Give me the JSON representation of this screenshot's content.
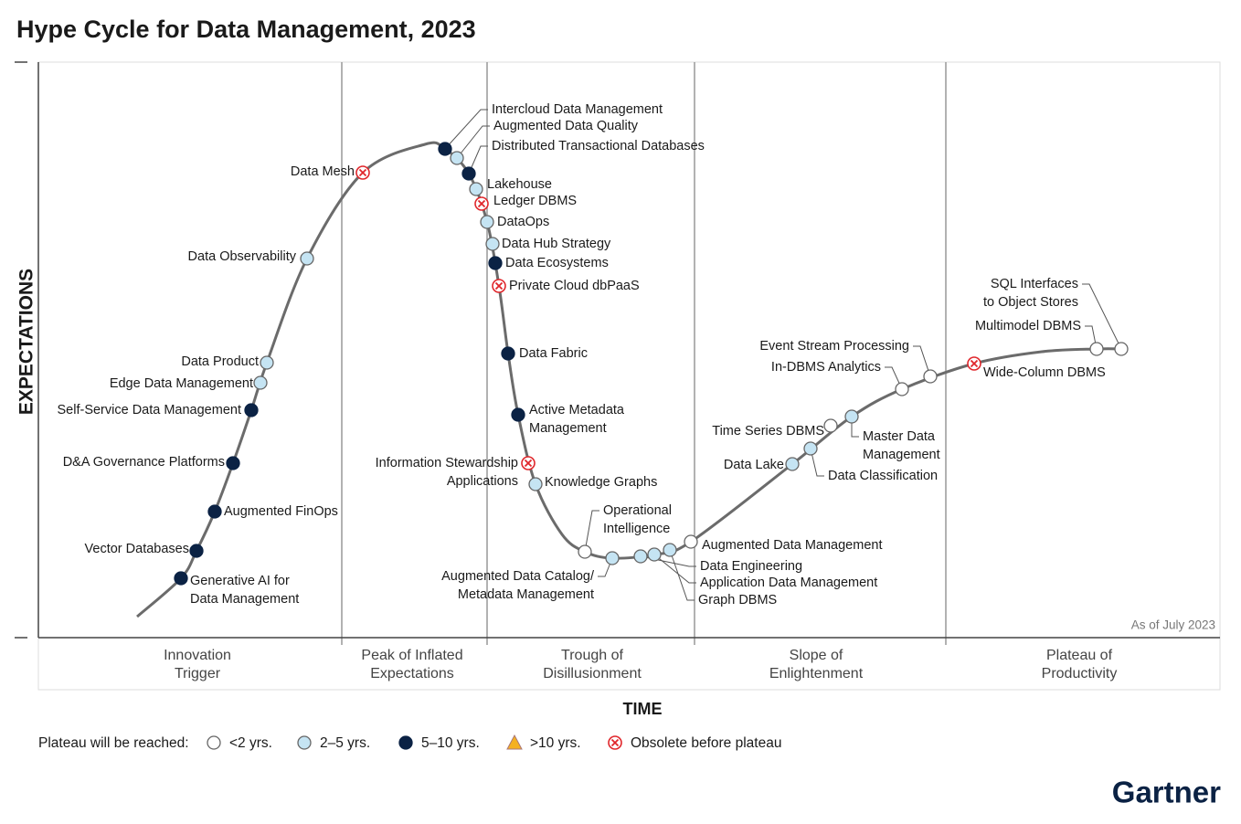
{
  "title": "Hype Cycle for Data Management, 2023",
  "y_axis_label": "EXPECTATIONS",
  "x_axis_label": "TIME",
  "as_of": "As of July 2023",
  "brand": "Gartner",
  "phases": [
    [
      "Innovation",
      "Trigger"
    ],
    [
      "Peak of Inflated",
      "Expectations"
    ],
    [
      "Trough of",
      "Disillusionment"
    ],
    [
      "Slope of",
      "Enlightenment"
    ],
    [
      "Plateau of",
      "Productivity"
    ]
  ],
  "legend": {
    "title": "Plateau will be reached:",
    "items": [
      {
        "label": "<2 yrs.",
        "color": "#ffffff",
        "marker": "circle",
        "technologies": [
          {
            "label": [
              "Operational",
              "Intelligence"
            ]
          },
          {
            "label": [
              "Augmented Data Management"
            ]
          },
          {
            "label": [
              "Time Series DBMS"
            ]
          },
          {
            "label": [
              "In-DBMS Analytics"
            ]
          },
          {
            "label": [
              "Event Stream Processing"
            ]
          },
          {
            "label": [
              "Multimodel DBMS"
            ]
          },
          {
            "label": [
              "SQL Interfaces",
              "to Object Stores"
            ]
          }
        ]
      },
      {
        "label": "2–5 yrs.",
        "color": "#c5e4f3",
        "marker": "circle",
        "technologies": [
          {
            "label": [
              "Data Product"
            ]
          },
          {
            "label": [
              "Edge Data Management"
            ]
          },
          {
            "label": [
              "Data Observability"
            ]
          },
          {
            "label": [
              "Augmented Data Quality"
            ]
          },
          {
            "label": [
              "Lakehouse"
            ]
          },
          {
            "label": [
              "DataOps"
            ]
          },
          {
            "label": [
              "Data Hub Strategy"
            ]
          },
          {
            "label": [
              "Knowledge Graphs"
            ]
          },
          {
            "label": [
              "Augmented Data Catalog/",
              "Metadata Management"
            ]
          },
          {
            "label": [
              "Data Engineering"
            ]
          },
          {
            "label": [
              "Application Data Management"
            ]
          },
          {
            "label": [
              "Graph DBMS"
            ]
          },
          {
            "label": [
              "Data Lake"
            ]
          },
          {
            "label": [
              "Data Classification"
            ]
          },
          {
            "label": [
              "Master Data",
              "Management"
            ]
          }
        ]
      },
      {
        "label": "5–10 yrs.",
        "color": "#0b2244",
        "marker": "circle",
        "technologies": [
          {
            "label": [
              "Generative AI for",
              "Data Management"
            ]
          },
          {
            "label": [
              "Vector Databases"
            ]
          },
          {
            "label": [
              "Augmented FinOps"
            ]
          },
          {
            "label": [
              "D&A Governance Platforms"
            ]
          },
          {
            "label": [
              "Self-Service Data Management"
            ]
          },
          {
            "label": [
              "Intercloud Data Management"
            ]
          },
          {
            "label": [
              "Distributed Transactional Databases"
            ]
          },
          {
            "label": [
              "Data Ecosystems"
            ]
          },
          {
            "label": [
              "Data Fabric"
            ]
          },
          {
            "label": [
              "Active Metadata",
              "Management"
            ]
          }
        ]
      },
      {
        "label": ">10 yrs.",
        "color": "#f5b120",
        "marker": "triangle",
        "technologies": []
      },
      {
        "label": "Obsolete before plateau",
        "color": "#e0262b",
        "marker": "cross",
        "technologies": [
          {
            "label": [
              "Data Mesh"
            ]
          },
          {
            "label": [
              "Ledger DBMS"
            ]
          },
          {
            "label": [
              "Private Cloud dbPaaS"
            ]
          },
          {
            "label": [
              "Information Stewardship",
              "Applications"
            ]
          },
          {
            "label": [
              "Wide-Column DBMS"
            ]
          }
        ]
      }
    ]
  }
}
